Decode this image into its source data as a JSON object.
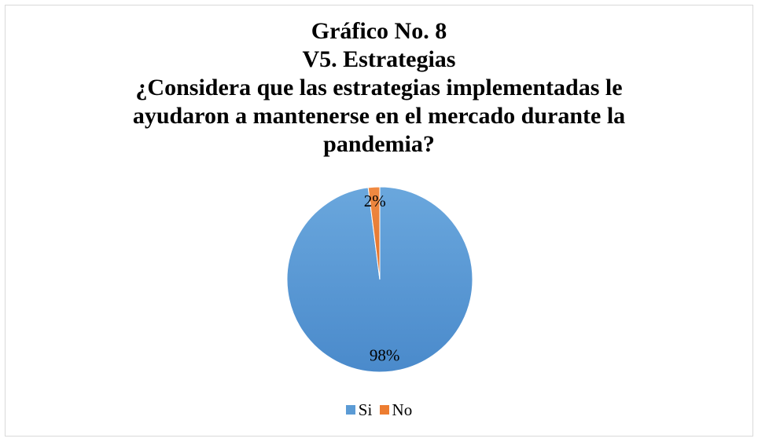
{
  "chart_data": {
    "type": "pie",
    "title_lines": [
      "Gráfico No. 8",
      "V5. Estrategias",
      "¿Considera que las estrategias implementadas le",
      "ayudaron a mantenerse en el mercado durante la",
      "pandemia?"
    ],
    "categories": [
      "Si",
      "No"
    ],
    "values": [
      98,
      2
    ],
    "labels": [
      "98%",
      "2%"
    ],
    "colors": [
      "#5b9bd5",
      "#ed7d31"
    ],
    "legend_position": "bottom",
    "start_angle_deg": 0,
    "direction": "counterclockwise"
  }
}
